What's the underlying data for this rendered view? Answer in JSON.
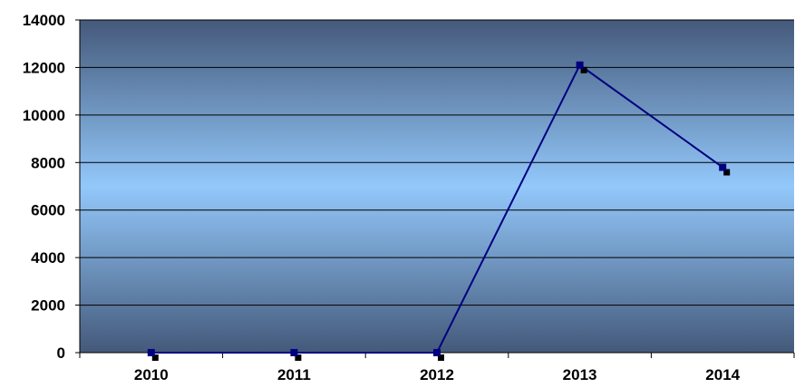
{
  "chart_data": {
    "type": "line",
    "title": "",
    "xlabel": "",
    "ylabel": "",
    "categories": [
      "2010",
      "2011",
      "2012",
      "2013",
      "2014"
    ],
    "series": [
      {
        "values": [
          0,
          0,
          0,
          12100,
          7800
        ],
        "color": "#000080"
      }
    ],
    "ylim": [
      0,
      14000
    ],
    "yticks": [
      0,
      2000,
      4000,
      6000,
      8000,
      10000,
      12000,
      14000
    ],
    "ytick_labels": [
      "0",
      "2000",
      "4000",
      "6000",
      "8000",
      "10000",
      "12000",
      "14000"
    ],
    "grid": true,
    "legend": "none",
    "colors": {
      "plot_edge": "#44597a",
      "plot_mid": "#93c8fb",
      "gridline": "#000000",
      "marker_shadow": "#000000",
      "series": "#000080"
    }
  }
}
